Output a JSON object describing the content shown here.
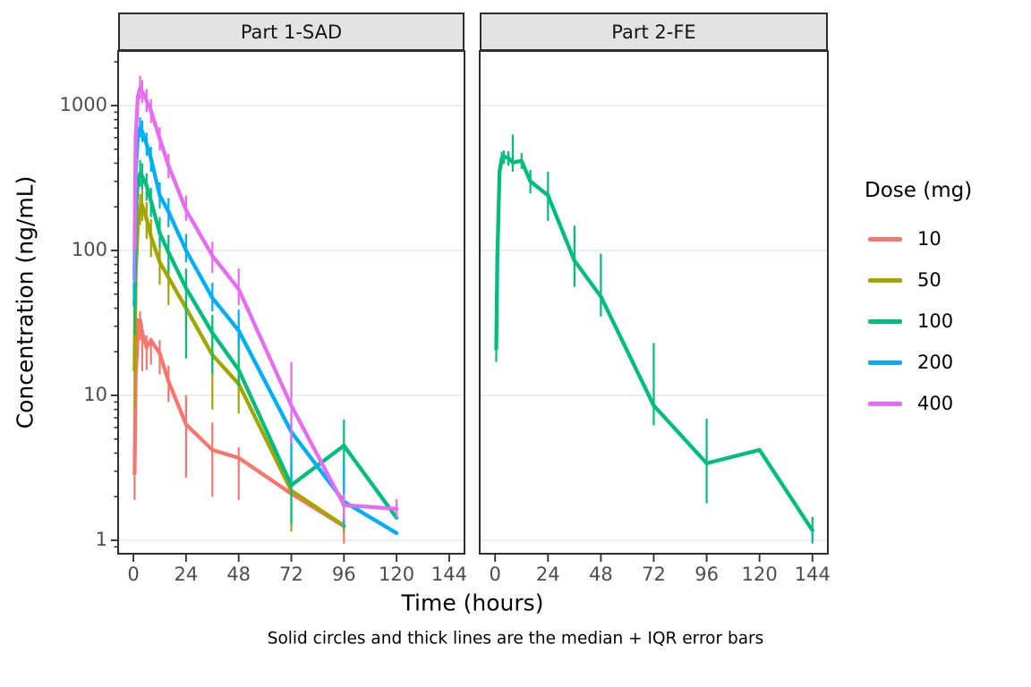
{
  "figure": {
    "xlabel": "Time (hours)",
    "ylabel": "Concentration (ng/mL)",
    "caption": "Solid circles and thick lines are the median + IQR error bars"
  },
  "legend": {
    "title": "Dose (mg)",
    "entries": [
      {
        "label": "10",
        "color": "#F8766D"
      },
      {
        "label": "50",
        "color": "#A3A500"
      },
      {
        "label": "100",
        "color": "#00BF7D"
      },
      {
        "label": "200",
        "color": "#00B0F6"
      },
      {
        "label": "400",
        "color": "#E76BF3"
      }
    ]
  },
  "chart_data": {
    "type": "line",
    "x_scale": "linear",
    "y_scale": "log10",
    "x_ticks": [
      0,
      24,
      48,
      72,
      96,
      120,
      144
    ],
    "y_ticks": [
      1,
      10,
      100,
      1000
    ],
    "x_range_hours": [
      -7,
      151
    ],
    "y_range": [
      0.81,
      2380
    ],
    "grid": "horizontal-major-only",
    "legend_position": "right",
    "error_bars": "IQR",
    "colors": {
      "grid": "#E9E9E9",
      "panel_border": "#2e2e2e",
      "tick": "#333333",
      "strip_bg": "#E3E3E3"
    },
    "facets": [
      {
        "label": "Part 1-SAD",
        "series": [
          {
            "name": "10",
            "dose_mg": 10,
            "color": "#F8766D",
            "t": [
              0.5,
              1,
              2,
              3,
              4,
              6,
              8,
              12,
              16,
              24,
              36,
              48,
              72,
              96
            ],
            "median": [
              2.9,
              14,
              26,
              33,
              27,
              21.5,
              24,
              19.5,
              12.5,
              6.3,
              4.2,
              3.7,
              2.1,
              1.25
            ],
            "q1": [
              1.9,
              null,
              18,
              24,
              14.7,
              15,
              16.3,
              14,
              9,
              2.7,
              2.0,
              1.9,
              null,
              0.95
            ],
            "q3": [
              4.6,
              null,
              34,
              38,
              31,
              26,
              25,
              24,
              16,
              10,
              6.5,
              4.4,
              null,
              1.6
            ]
          },
          {
            "name": "50",
            "dose_mg": 50,
            "color": "#A3A500",
            "t": [
              0.5,
              1,
              2,
              3,
              4,
              6,
              8,
              12,
              16,
              24,
              36,
              48,
              72,
              96
            ],
            "median": [
              15,
              70,
              150,
              190,
              205,
              165,
              125,
              83,
              65,
              40,
              19,
              12,
              2.2,
              1.26
            ],
            "q1": [
              8,
              null,
              95,
              150,
              160,
              120,
              90,
              58,
              42,
              29,
              8,
              7.5,
              1.15,
              1.12
            ],
            "q3": [
              25,
              null,
              210,
              245,
              265,
              215,
              165,
              110,
              88,
              49,
              30,
              17,
              3.4,
              1.4
            ]
          },
          {
            "name": "100",
            "dose_mg": 100,
            "color": "#00BF7D",
            "t": [
              0.5,
              1,
              2,
              3,
              4,
              6,
              8,
              12,
              16,
              24,
              36,
              48,
              72,
              96,
              120
            ],
            "median": [
              42,
              180,
              300,
              340,
              325,
              280,
              220,
              132,
              97,
              55,
              27,
              15,
              2.4,
              4.5,
              1.43
            ],
            "q1": [
              26,
              null,
              null,
              275,
              265,
              220,
              170,
              105,
              70,
              18,
              14,
              11.5,
              1.3,
              1.9,
              1.4
            ],
            "q3": [
              62,
              null,
              null,
              420,
              400,
              340,
              270,
              170,
              128,
              75,
              36,
              27.5,
              6.0,
              6.8,
              1.85
            ]
          },
          {
            "name": "200",
            "dose_mg": 200,
            "color": "#00B0F6",
            "t": [
              0.5,
              1,
              2,
              3,
              4,
              6,
              8,
              12,
              16,
              24,
              36,
              48,
              72,
              96,
              120
            ],
            "median": [
              65,
              350,
              620,
              700,
              660,
              540,
              430,
              240,
              185,
              100,
              47,
              28,
              5.6,
              1.85,
              1.12
            ],
            "q1": [
              40,
              null,
              null,
              600,
              560,
              450,
              350,
              195,
              145,
              83,
              38,
              22,
              2.6,
              1.2,
              null
            ],
            "q3": [
              100,
              null,
              null,
              830,
              790,
              650,
              520,
              295,
              230,
              130,
              60,
              39,
              7.6,
              3.5,
              null
            ]
          },
          {
            "name": "400",
            "dose_mg": 400,
            "color": "#E76BF3",
            "t": [
              0.5,
              1,
              2,
              3,
              4,
              6,
              8,
              12,
              16,
              24,
              36,
              48,
              72,
              96,
              120
            ],
            "median": [
              103,
              600,
              1150,
              1320,
              1250,
              1080,
              920,
              590,
              385,
              190,
              92,
              54,
              8.5,
              1.75,
              1.65
            ],
            "q1": [
              60,
              null,
              null,
              1110,
              1040,
              900,
              760,
              490,
              315,
              160,
              70,
              42,
              4.6,
              1.4,
              1.43
            ],
            "q3": [
              160,
              null,
              null,
              1600,
              1500,
              1300,
              1110,
              710,
              465,
              240,
              115,
              75,
              17,
              2.1,
              1.92
            ]
          }
        ]
      },
      {
        "label": "Part 2-FE",
        "series": [
          {
            "name": "100",
            "dose_mg": 100,
            "color": "#00BF7D",
            "t": [
              0.5,
              1,
              2,
              3,
              4,
              6,
              8,
              12,
              16,
              24,
              36,
              48,
              72,
              96,
              120,
              144
            ],
            "median": [
              21,
              90,
              350,
              430,
              445,
              435,
              405,
              415,
              300,
              240,
              85,
              48,
              8.5,
              3.4,
              4.2,
              1.17
            ],
            "q1": [
              17,
              null,
              null,
              385,
              395,
              385,
              350,
              365,
              248,
              160,
              56,
              35,
              6.2,
              1.8,
              null,
              0.95
            ],
            "q3": [
              27,
              null,
              null,
              480,
              490,
              485,
              630,
              470,
              360,
              350,
              148,
              95,
              23,
              6.9,
              null,
              1.45
            ]
          }
        ]
      }
    ]
  }
}
